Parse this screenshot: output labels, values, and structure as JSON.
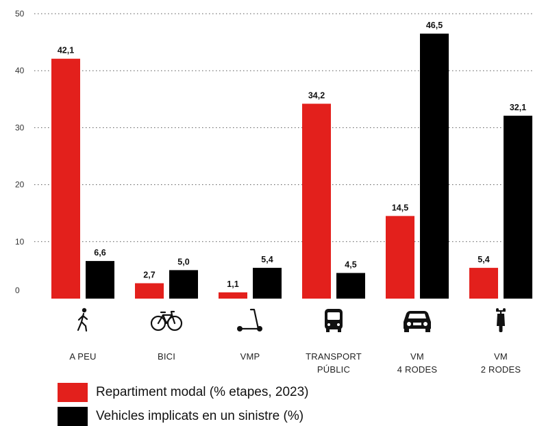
{
  "chart_data": {
    "type": "bar",
    "categories": [
      [
        "A PEU"
      ],
      [
        "BICI"
      ],
      [
        "VMP"
      ],
      [
        "TRANSPORT",
        "PÚBLIC"
      ],
      [
        "VM",
        "4 RODES"
      ],
      [
        "VM",
        "2 RODES"
      ]
    ],
    "category_icons": [
      "pedestrian-icon",
      "bicycle-icon",
      "scooter-icon",
      "bus-icon",
      "car-icon",
      "motorbike-icon"
    ],
    "series": [
      {
        "name": "Repartiment modal (% etapes, 2023)",
        "color": "#e3201c",
        "values": [
          42.1,
          2.7,
          1.1,
          34.2,
          14.5,
          5.4
        ],
        "labels": [
          "42,1",
          "2,7",
          "1,1",
          "34,2",
          "14,5",
          "5,4"
        ]
      },
      {
        "name": "Vehicles implicats en un sinistre (%)",
        "color": "#000000",
        "values": [
          6.6,
          5.0,
          5.4,
          4.5,
          46.5,
          32.1
        ],
        "labels": [
          "6,6",
          "5,0",
          "5,4",
          "4,5",
          "46,5",
          "32,1"
        ]
      }
    ],
    "ylim": [
      0,
      50
    ],
    "yticks": [
      0,
      10,
      20,
      30,
      40,
      50
    ],
    "grid": true,
    "legend_position": "bottom-left"
  }
}
